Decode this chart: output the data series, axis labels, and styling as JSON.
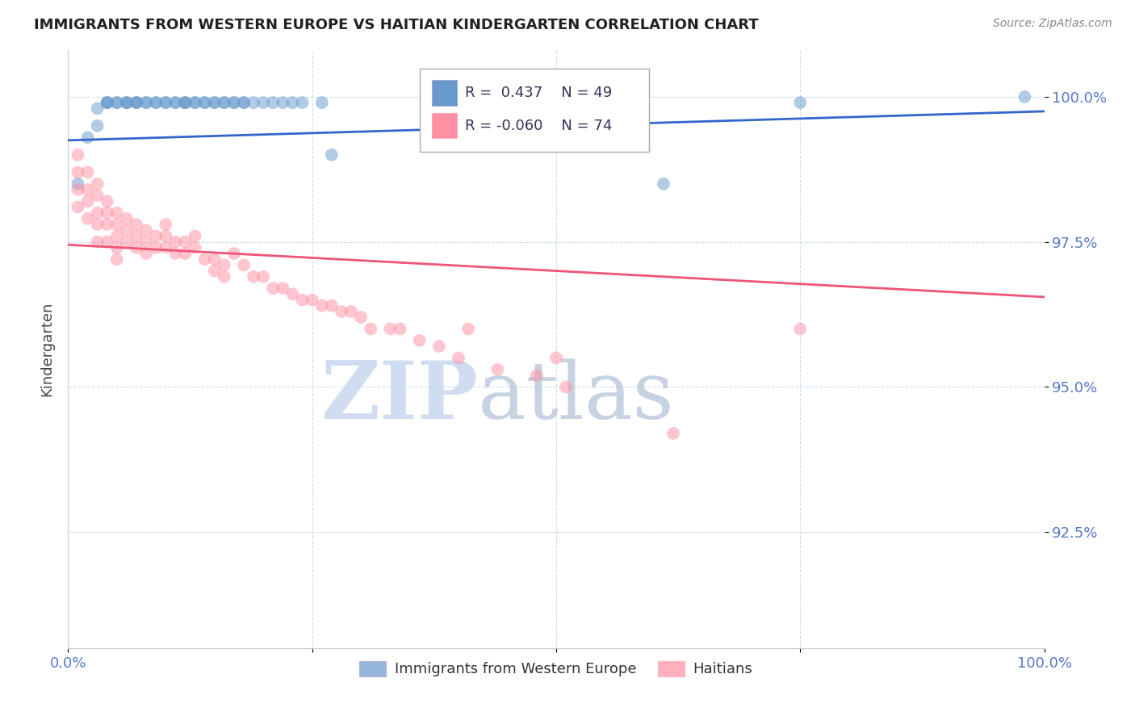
{
  "title": "IMMIGRANTS FROM WESTERN EUROPE VS HAITIAN KINDERGARTEN CORRELATION CHART",
  "source": "Source: ZipAtlas.com",
  "ylabel": "Kindergarten",
  "ytick_labels": [
    "100.0%",
    "97.5%",
    "95.0%",
    "92.5%"
  ],
  "ytick_values": [
    1.0,
    0.975,
    0.95,
    0.925
  ],
  "ylim": [
    0.905,
    1.008
  ],
  "xlim": [
    0.0,
    1.0
  ],
  "legend_label_blue": "Immigrants from Western Europe",
  "legend_label_pink": "Haitians",
  "blue_R": "0.437",
  "blue_N": "49",
  "pink_R": "-0.060",
  "pink_N": "74",
  "blue_color": "#6699CC",
  "pink_color": "#FF8FA3",
  "blue_line_color": "#3366CC",
  "pink_line_color": "#EE5577",
  "watermark_zip": "ZIP",
  "watermark_atlas": "atlas",
  "blue_scatter_x": [
    0.01,
    0.02,
    0.03,
    0.03,
    0.04,
    0.04,
    0.04,
    0.05,
    0.05,
    0.06,
    0.06,
    0.06,
    0.07,
    0.07,
    0.07,
    0.08,
    0.08,
    0.09,
    0.09,
    0.1,
    0.1,
    0.11,
    0.11,
    0.12,
    0.12,
    0.12,
    0.13,
    0.13,
    0.14,
    0.14,
    0.15,
    0.15,
    0.16,
    0.16,
    0.17,
    0.17,
    0.18,
    0.18,
    0.19,
    0.2,
    0.21,
    0.22,
    0.23,
    0.24,
    0.26,
    0.27,
    0.61,
    0.75,
    0.98
  ],
  "blue_scatter_y": [
    0.985,
    0.993,
    0.998,
    0.995,
    0.999,
    0.999,
    0.999,
    0.999,
    0.999,
    0.999,
    0.999,
    0.999,
    0.999,
    0.999,
    0.999,
    0.999,
    0.999,
    0.999,
    0.999,
    0.999,
    0.999,
    0.999,
    0.999,
    0.999,
    0.999,
    0.999,
    0.999,
    0.999,
    0.999,
    0.999,
    0.999,
    0.999,
    0.999,
    0.999,
    0.999,
    0.999,
    0.999,
    0.999,
    0.999,
    0.999,
    0.999,
    0.999,
    0.999,
    0.999,
    0.999,
    0.99,
    0.985,
    0.999,
    1.0
  ],
  "pink_scatter_x": [
    0.01,
    0.01,
    0.01,
    0.01,
    0.02,
    0.02,
    0.02,
    0.02,
    0.03,
    0.03,
    0.03,
    0.03,
    0.03,
    0.04,
    0.04,
    0.04,
    0.04,
    0.05,
    0.05,
    0.05,
    0.05,
    0.05,
    0.06,
    0.06,
    0.06,
    0.07,
    0.07,
    0.07,
    0.08,
    0.08,
    0.08,
    0.09,
    0.09,
    0.1,
    0.1,
    0.1,
    0.11,
    0.11,
    0.12,
    0.12,
    0.13,
    0.13,
    0.14,
    0.15,
    0.15,
    0.16,
    0.16,
    0.17,
    0.18,
    0.19,
    0.2,
    0.21,
    0.22,
    0.23,
    0.24,
    0.25,
    0.26,
    0.27,
    0.28,
    0.29,
    0.3,
    0.31,
    0.33,
    0.34,
    0.36,
    0.38,
    0.4,
    0.41,
    0.44,
    0.48,
    0.5,
    0.51,
    0.62,
    0.75
  ],
  "pink_scatter_y": [
    0.99,
    0.987,
    0.984,
    0.981,
    0.987,
    0.984,
    0.982,
    0.979,
    0.985,
    0.983,
    0.98,
    0.978,
    0.975,
    0.982,
    0.98,
    0.978,
    0.975,
    0.98,
    0.978,
    0.976,
    0.974,
    0.972,
    0.979,
    0.977,
    0.975,
    0.978,
    0.976,
    0.974,
    0.977,
    0.975,
    0.973,
    0.976,
    0.974,
    0.978,
    0.976,
    0.974,
    0.975,
    0.973,
    0.975,
    0.973,
    0.976,
    0.974,
    0.972,
    0.972,
    0.97,
    0.971,
    0.969,
    0.973,
    0.971,
    0.969,
    0.969,
    0.967,
    0.967,
    0.966,
    0.965,
    0.965,
    0.964,
    0.964,
    0.963,
    0.963,
    0.962,
    0.96,
    0.96,
    0.96,
    0.958,
    0.957,
    0.955,
    0.96,
    0.953,
    0.952,
    0.955,
    0.95,
    0.942,
    0.96
  ],
  "blue_trend_x": [
    0.0,
    1.0
  ],
  "blue_trend_y": [
    0.9925,
    0.9975
  ],
  "pink_trend_x": [
    0.0,
    1.0
  ],
  "pink_trend_y": [
    0.9745,
    0.9655
  ]
}
